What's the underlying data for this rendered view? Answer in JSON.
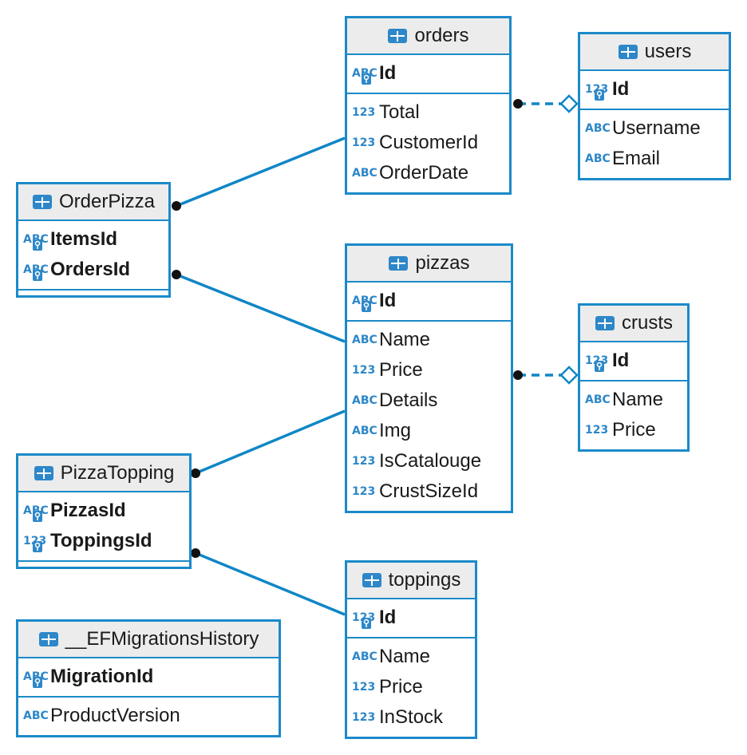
{
  "colors": {
    "border": "#1b8ac9",
    "header_bg": "#ececec",
    "type_icon": "#2d87c8",
    "connector": "#0f86c6"
  },
  "entities": {
    "orders": {
      "title": "orders",
      "keys": [
        {
          "name": "Id",
          "type": "ABC"
        }
      ],
      "columns": [
        {
          "name": "Total",
          "type": "123"
        },
        {
          "name": "CustomerId",
          "type": "123"
        },
        {
          "name": "OrderDate",
          "type": "ABC"
        }
      ]
    },
    "users": {
      "title": "users",
      "keys": [
        {
          "name": "Id",
          "type": "123"
        }
      ],
      "columns": [
        {
          "name": "Username",
          "type": "ABC"
        },
        {
          "name": "Email",
          "type": "ABC"
        }
      ]
    },
    "orderpizza": {
      "title": "OrderPizza",
      "keys": [
        {
          "name": "ItemsId",
          "type": "ABC"
        },
        {
          "name": "OrdersId",
          "type": "ABC"
        }
      ],
      "columns": []
    },
    "pizzas": {
      "title": "pizzas",
      "keys": [
        {
          "name": "Id",
          "type": "ABC"
        }
      ],
      "columns": [
        {
          "name": "Name",
          "type": "ABC"
        },
        {
          "name": "Price",
          "type": "123"
        },
        {
          "name": "Details",
          "type": "ABC"
        },
        {
          "name": "Img",
          "type": "ABC"
        },
        {
          "name": "IsCatalouge",
          "type": "123"
        },
        {
          "name": "CrustSizeId",
          "type": "123"
        }
      ]
    },
    "crusts": {
      "title": "crusts",
      "keys": [
        {
          "name": "Id",
          "type": "123"
        }
      ],
      "columns": [
        {
          "name": "Name",
          "type": "ABC"
        },
        {
          "name": "Price",
          "type": "123"
        }
      ]
    },
    "pizzatopping": {
      "title": "PizzaTopping",
      "keys": [
        {
          "name": "PizzasId",
          "type": "ABC"
        },
        {
          "name": "ToppingsId",
          "type": "123"
        }
      ],
      "columns": []
    },
    "toppings": {
      "title": "toppings",
      "keys": [
        {
          "name": "Id",
          "type": "123"
        }
      ],
      "columns": [
        {
          "name": "Name",
          "type": "ABC"
        },
        {
          "name": "Price",
          "type": "123"
        },
        {
          "name": "InStock",
          "type": "123"
        }
      ]
    },
    "efmigrations": {
      "title": "__EFMigrationsHistory",
      "keys": [
        {
          "name": "MigrationId",
          "type": "ABC"
        }
      ],
      "columns": [
        {
          "name": "ProductVersion",
          "type": "ABC"
        }
      ]
    }
  }
}
